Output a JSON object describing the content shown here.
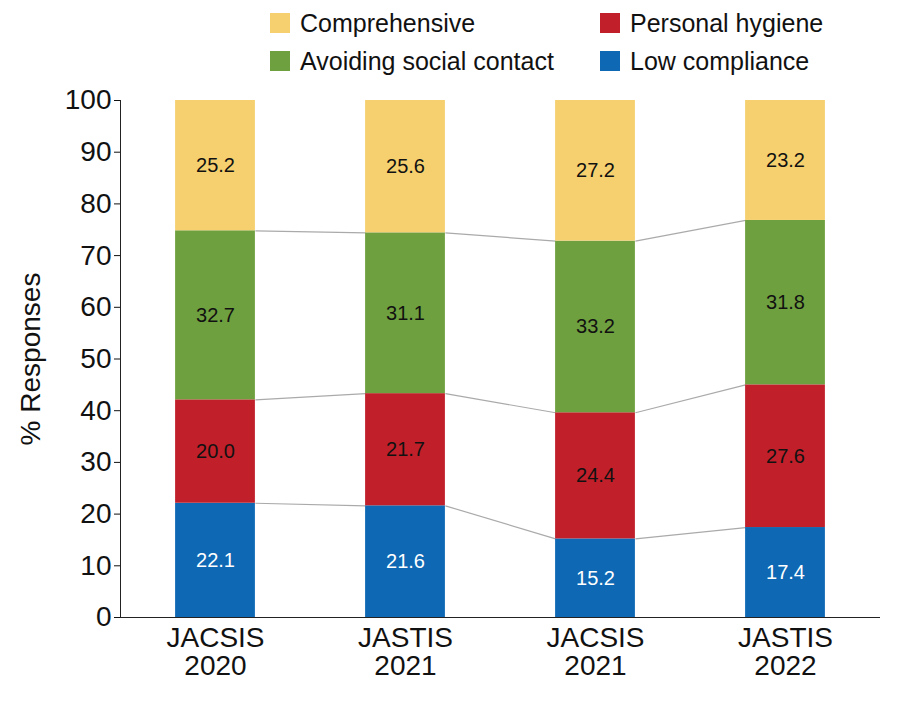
{
  "chart_data": {
    "type": "bar",
    "stacked": true,
    "data_labels": true,
    "legend": "top",
    "y_label": "% Responses",
    "categories": [
      "JACSIS 2020",
      "JASTIS 2021",
      "JACSIS 2021",
      "JASTIS 2022"
    ],
    "series": [
      {
        "name": "Low compliance",
        "color": "#0e68b3",
        "values": [
          22.1,
          21.6,
          15.2,
          17.4
        ]
      },
      {
        "name": "Personal hygiene",
        "color": "#c1202a",
        "values": [
          20.0,
          21.7,
          24.4,
          27.6
        ],
        "value_labels": [
          "20.0",
          "21.7",
          "24.4",
          "27.6"
        ]
      },
      {
        "name": "Avoiding social contact",
        "color": "#6fa03f",
        "values": [
          32.7,
          31.1,
          33.2,
          31.8
        ]
      },
      {
        "name": "Comprehensive",
        "color": "#f6d06e",
        "values": [
          25.2,
          25.6,
          27.2,
          23.2
        ]
      }
    ],
    "ylim": [
      0,
      100
    ],
    "yticks": [
      0,
      10,
      20,
      30,
      40,
      50,
      60,
      70,
      80,
      90,
      100
    ]
  }
}
